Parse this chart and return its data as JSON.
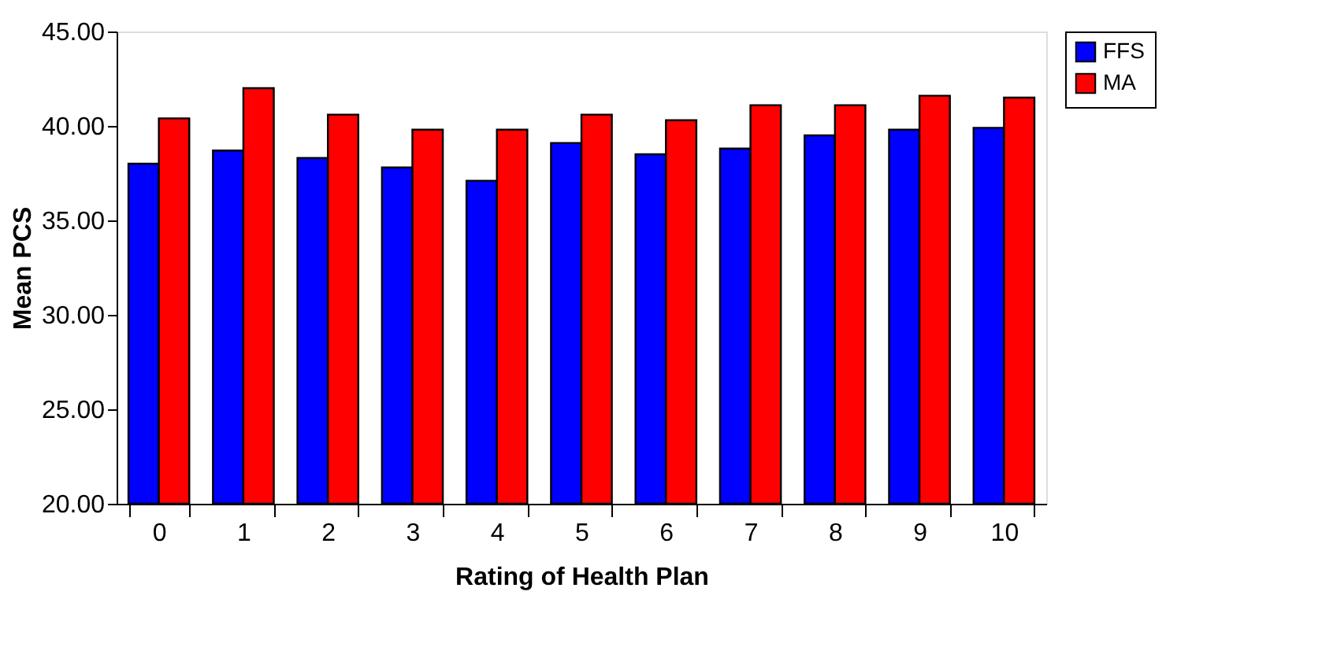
{
  "chart_data": {
    "type": "bar",
    "xlabel": "Rating of Health Plan",
    "ylabel": "Mean PCS",
    "categories": [
      "0",
      "1",
      "2",
      "3",
      "4",
      "5",
      "6",
      "7",
      "8",
      "9",
      "10"
    ],
    "series": [
      {
        "name": "FFS",
        "color": "#0000ff",
        "values": [
          38.0,
          38.7,
          38.3,
          37.8,
          37.1,
          39.1,
          38.5,
          38.8,
          39.5,
          39.8,
          39.9
        ]
      },
      {
        "name": "MA",
        "color": "#ff0000",
        "values": [
          40.4,
          42.0,
          40.6,
          39.8,
          39.8,
          40.6,
          40.3,
          41.1,
          41.1,
          41.6,
          41.5
        ]
      }
    ],
    "ylim": [
      20,
      45
    ],
    "yticks": [
      {
        "value": 20,
        "label": "20.00"
      },
      {
        "value": 25,
        "label": "25.00"
      },
      {
        "value": 30,
        "label": "30.00"
      },
      {
        "value": 35,
        "label": "35.00"
      },
      {
        "value": 40,
        "label": "40.00"
      },
      {
        "value": 45,
        "label": "45.00"
      }
    ],
    "grid": false,
    "legend": "right"
  }
}
